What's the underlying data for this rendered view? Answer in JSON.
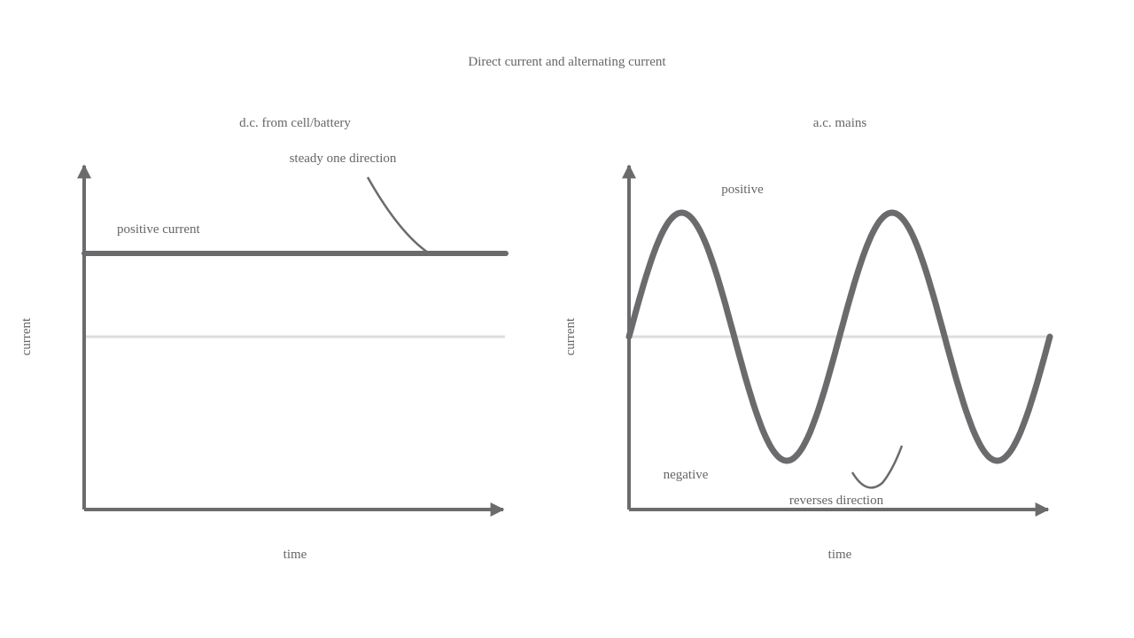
{
  "title": "Direct current and alternating current",
  "panels": [
    {
      "title": "d.c. from cell/battery",
      "y_label": "current",
      "x_label": "time",
      "annotations": [
        "steady one direction",
        "positive current"
      ]
    },
    {
      "title": "a.c. mains",
      "y_label": "current",
      "x_label": "time",
      "annotations": [
        "positive",
        "negative",
        "reverses direction"
      ]
    }
  ]
}
